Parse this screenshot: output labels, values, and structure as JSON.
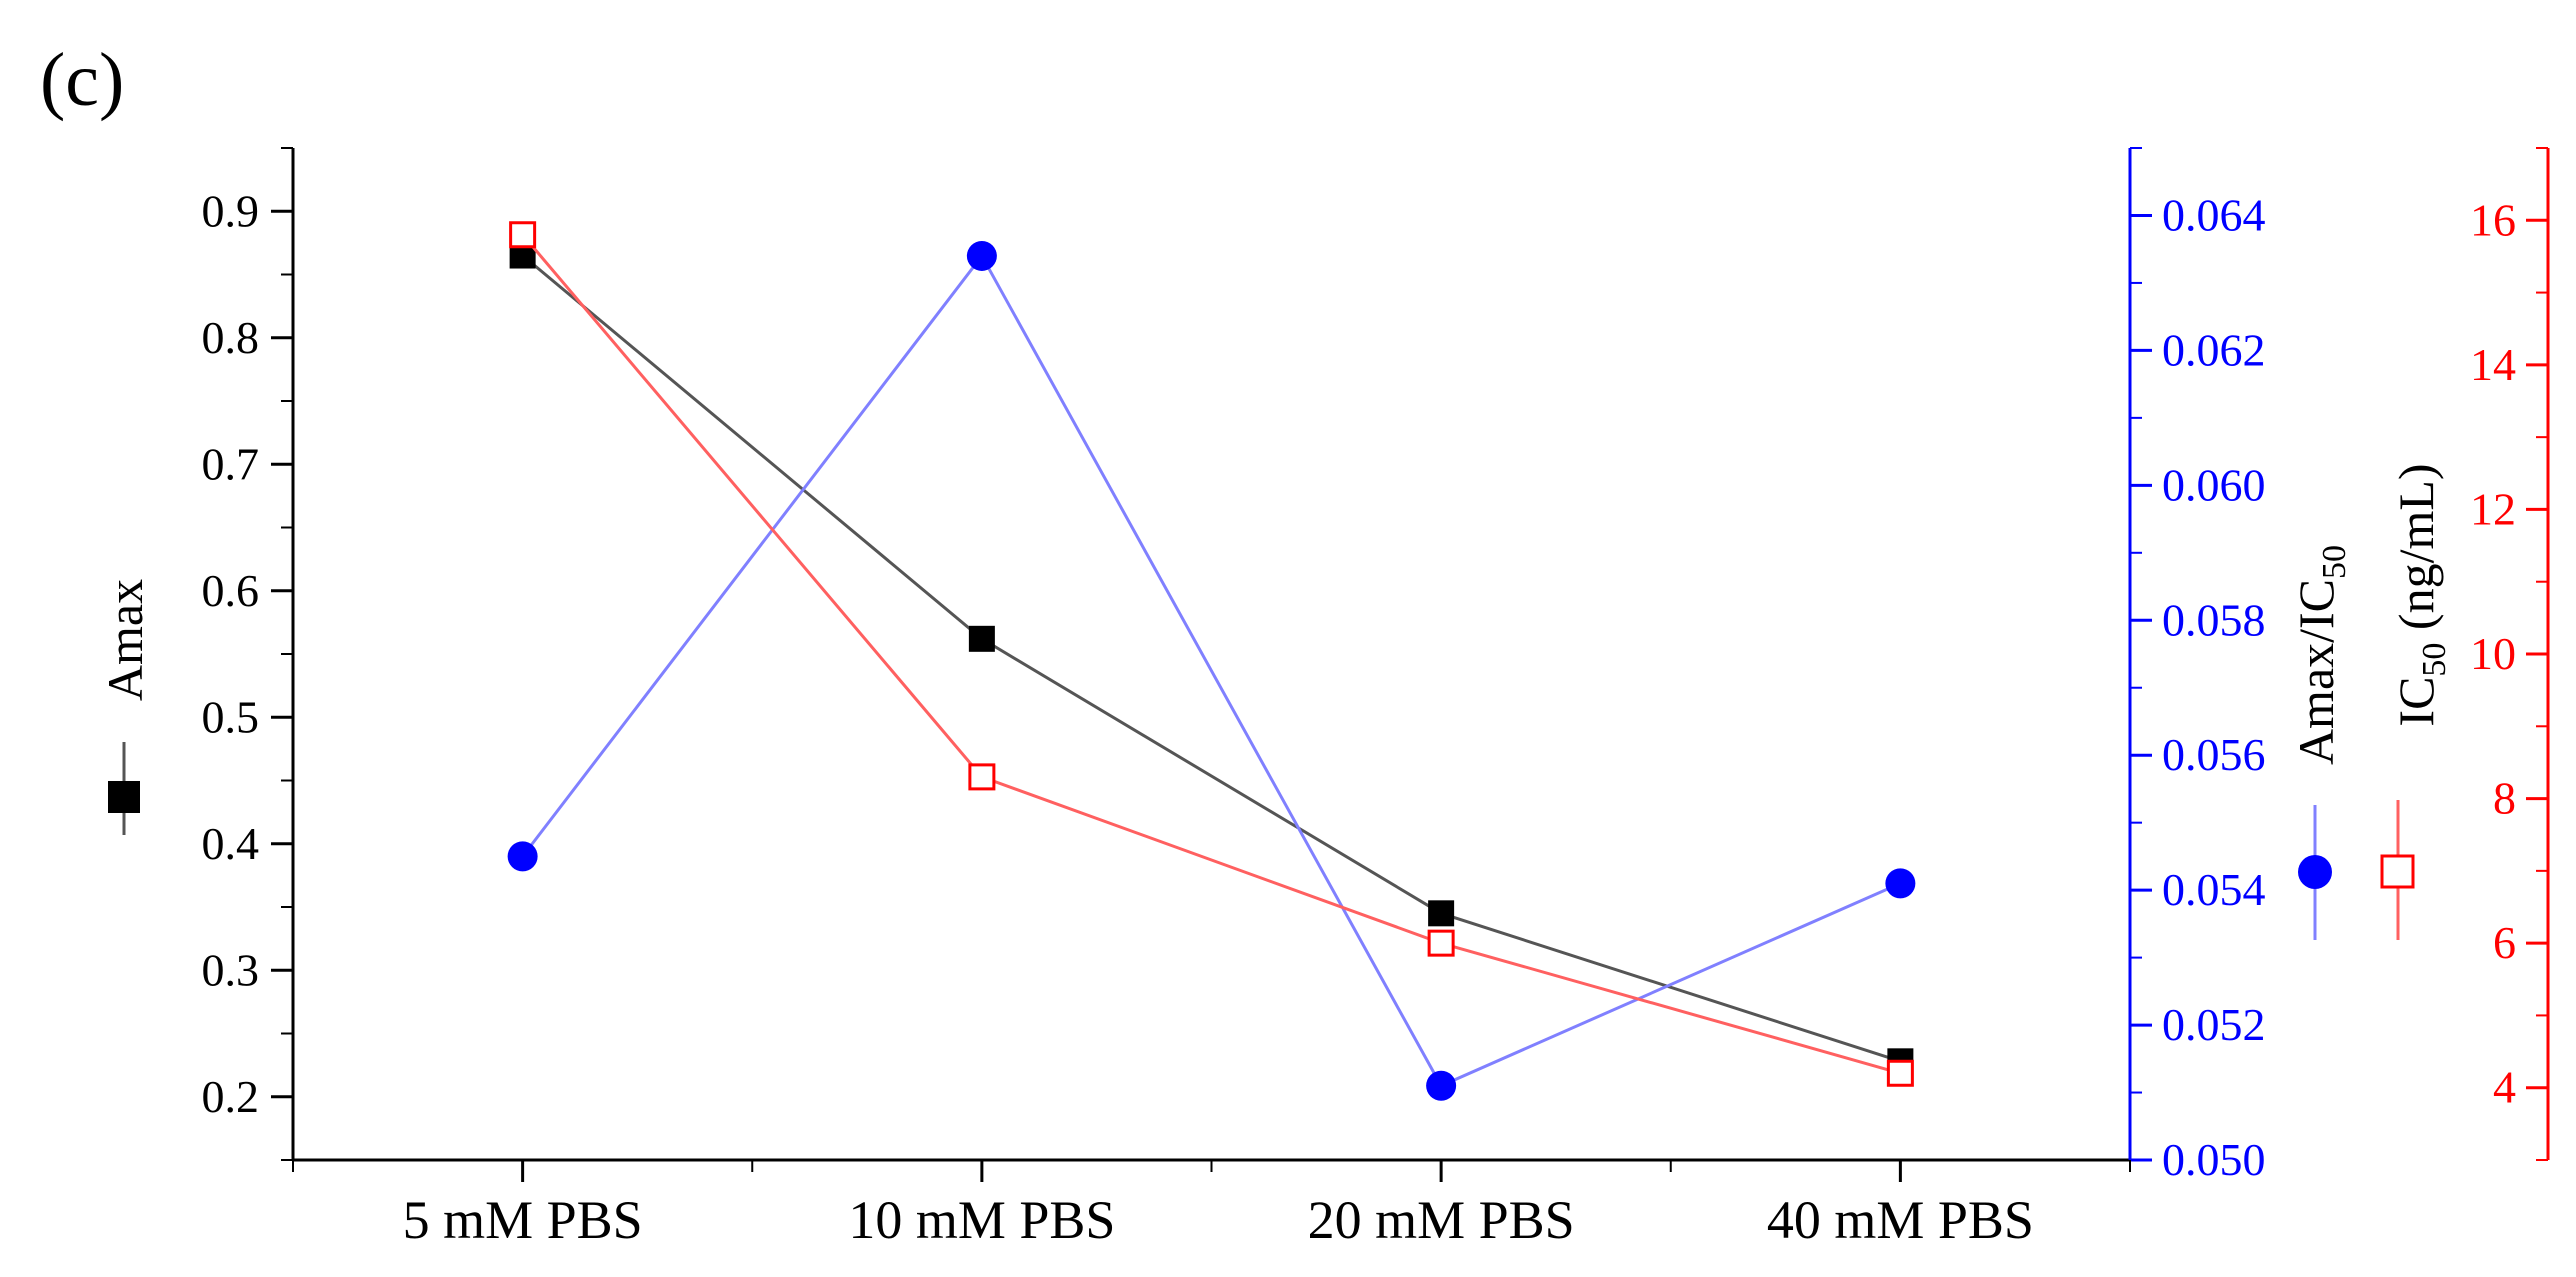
{
  "panel_label": "(c)",
  "chart_data": {
    "type": "line",
    "categories": [
      "5 mM PBS",
      "10 mM PBS",
      "20 mM PBS",
      "40 mM PBS"
    ],
    "axes": {
      "left": {
        "label": "Amax",
        "range": [
          0.15,
          0.95
        ],
        "ticks": [
          "0.2",
          "0.3",
          "0.4",
          "0.5",
          "0.6",
          "0.7",
          "0.8",
          "0.9"
        ],
        "color": "#000000"
      },
      "right1": {
        "label_main": "Amax/IC",
        "label_sub": "50",
        "range": [
          0.05,
          0.065
        ],
        "ticks": [
          "0.050",
          "0.052",
          "0.054",
          "0.056",
          "0.058",
          "0.060",
          "0.062",
          "0.064"
        ],
        "color": "#0000ff"
      },
      "right2": {
        "label_pre": "IC",
        "label_sub": "50",
        "label_post": " (ng/mL)",
        "range": [
          3,
          17
        ],
        "ticks": [
          "4",
          "6",
          "8",
          "10",
          "12",
          "14",
          "16"
        ],
        "color": "#ff0000"
      }
    },
    "series": [
      {
        "name": "Amax",
        "axis": "left",
        "marker": "filled-square",
        "color": "#000000",
        "line_color": "#555555",
        "values": [
          0.865,
          0.562,
          0.345,
          0.228
        ]
      },
      {
        "name": "Amax/IC50",
        "axis": "right1",
        "marker": "filled-circle",
        "color": "#0000ff",
        "line_color": "#8080ff",
        "values": [
          0.0545,
          0.0634,
          0.0511,
          0.0541
        ]
      },
      {
        "name": "IC50 (ng/mL)",
        "axis": "right2",
        "marker": "open-square",
        "color": "#ff0000",
        "line_color": "#ff6060",
        "values": [
          15.8,
          8.3,
          6.0,
          4.2
        ]
      }
    ]
  }
}
